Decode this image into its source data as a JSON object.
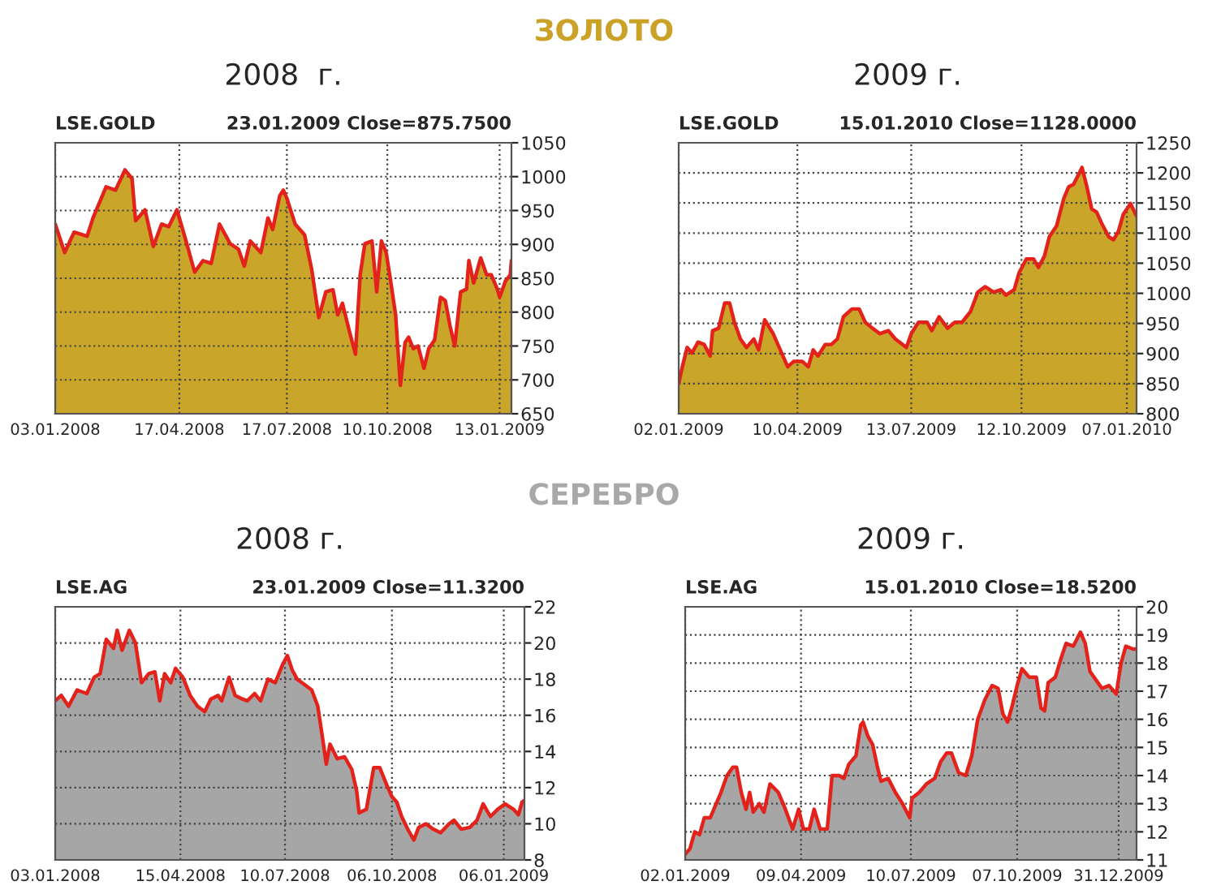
{
  "chart_data": [
    {
      "type": "area",
      "title": "2008  г.",
      "subtitle": "LSE.GOLD",
      "annotations": [
        "ЗОЛОТО",
        "23.01.2009 Close=875.7500"
      ],
      "grid": true,
      "x": [
        "2008-01-03",
        "2008-01-11",
        "2008-01-19",
        "2008-01-30",
        "2008-02-04",
        "2008-02-15",
        "2008-02-23",
        "2008-03-02",
        "2008-03-08",
        "2008-03-11",
        "2008-03-19",
        "2008-03-26",
        "2008-04-02",
        "2008-04-08",
        "2008-04-15",
        "2008-04-22",
        "2008-04-30",
        "2008-05-07",
        "2008-05-14",
        "2008-05-21",
        "2008-05-30",
        "2008-06-06",
        "2008-06-11",
        "2008-06-16",
        "2008-06-25",
        "2008-07-01",
        "2008-07-05",
        "2008-07-11",
        "2008-07-14",
        "2008-07-17",
        "2008-07-24",
        "2008-08-01",
        "2008-08-07",
        "2008-08-13",
        "2008-08-19",
        "2008-08-25",
        "2008-08-29",
        "2008-09-02",
        "2008-09-08",
        "2008-09-13",
        "2008-09-17",
        "2008-09-21",
        "2008-09-27",
        "2008-10-01",
        "2008-10-05",
        "2008-10-09",
        "2008-10-12",
        "2008-10-17",
        "2008-10-21",
        "2008-10-25",
        "2008-10-28",
        "2008-11-01",
        "2008-11-05",
        "2008-11-10",
        "2008-11-14",
        "2008-11-19",
        "2008-11-24",
        "2008-11-28",
        "2008-12-02",
        "2008-12-06",
        "2008-12-11",
        "2008-12-16",
        "2008-12-18",
        "2008-12-22",
        "2008-12-28",
        "2009-01-02",
        "2009-01-06",
        "2009-01-11",
        "2009-01-13",
        "2009-01-18",
        "2009-01-22",
        "2009-01-23"
      ],
      "series": [
        {
          "color": "#c9a52a",
          "values": [
            930,
            888,
            918,
            912,
            939,
            985,
            980,
            1010,
            997,
            935,
            951,
            897,
            930,
            926,
            951,
            909,
            859,
            876,
            872,
            930,
            901,
            893,
            868,
            905,
            888,
            939,
            922,
            972,
            980,
            968,
            930,
            914,
            863,
            792,
            830,
            833,
            796,
            813,
            771,
            738,
            855,
            901,
            905,
            830,
            905,
            888,
            855,
            796,
            692,
            755,
            763,
            746,
            750,
            717,
            746,
            759,
            822,
            817,
            780,
            750,
            830,
            834,
            876,
            843,
            880,
            855,
            855,
            834,
            822,
            846,
            855,
            876
          ]
        }
      ],
      "xlim": [
        "2008-01-03",
        "2009-01-23"
      ],
      "xticks": [
        {
          "value": "2008-01-03",
          "label": "03.01.2008"
        },
        {
          "value": "2008-04-17",
          "label": "17.04.2008"
        },
        {
          "value": "2008-07-17",
          "label": "17.07.2008"
        },
        {
          "value": "2008-10-10",
          "label": "10.10.2008"
        },
        {
          "value": "2009-01-13",
          "label": "13.01.2009"
        }
      ],
      "ylim": [
        650,
        1050
      ],
      "yticks": [
        650,
        700,
        750,
        800,
        850,
        900,
        950,
        1000,
        1050
      ]
    },
    {
      "type": "area",
      "title": "2009 г.",
      "subtitle": "LSE.GOLD",
      "annotations": [
        "15.01.2010 Close=1128.0000"
      ],
      "grid": true,
      "x": [
        "2009-01-02",
        "2009-01-05",
        "2009-01-09",
        "2009-01-13",
        "2009-01-18",
        "2009-01-23",
        "2009-01-28",
        "2009-01-30",
        "2009-02-04",
        "2009-02-09",
        "2009-02-13",
        "2009-02-17",
        "2009-02-22",
        "2009-02-27",
        "2009-03-05",
        "2009-03-09",
        "2009-03-14",
        "2009-03-21",
        "2009-03-26",
        "2009-04-02",
        "2009-04-07",
        "2009-04-14",
        "2009-04-19",
        "2009-04-23",
        "2009-04-27",
        "2009-05-03",
        "2009-05-08",
        "2009-05-13",
        "2009-05-18",
        "2009-05-25",
        "2009-05-31",
        "2009-06-05",
        "2009-06-11",
        "2009-06-17",
        "2009-06-24",
        "2009-06-30",
        "2009-07-09",
        "2009-07-13",
        "2009-07-19",
        "2009-07-26",
        "2009-07-30",
        "2009-08-05",
        "2009-08-12",
        "2009-08-18",
        "2009-08-24",
        "2009-08-31",
        "2009-09-06",
        "2009-09-12",
        "2009-09-19",
        "2009-09-25",
        "2009-09-29",
        "2009-10-06",
        "2009-10-10",
        "2009-10-16",
        "2009-10-22",
        "2009-10-26",
        "2009-10-31",
        "2009-11-04",
        "2009-11-10",
        "2009-11-16",
        "2009-11-20",
        "2009-11-24",
        "2009-12-01",
        "2009-12-05",
        "2009-12-09",
        "2009-12-13",
        "2009-12-17",
        "2009-12-23",
        "2009-12-27",
        "2009-12-31",
        "2010-01-04",
        "2010-01-10",
        "2010-01-15"
      ],
      "series": [
        {
          "color": "#c9a52a",
          "values": [
            850,
            878,
            910,
            901,
            919,
            915,
            896,
            938,
            942,
            984,
            984,
            952,
            924,
            910,
            924,
            906,
            956,
            933,
            910,
            878,
            887,
            887,
            878,
            906,
            896,
            915,
            915,
            924,
            961,
            974,
            974,
            952,
            942,
            933,
            938,
            924,
            910,
            933,
            952,
            952,
            938,
            961,
            942,
            952,
            952,
            970,
            1002,
            1011,
            1002,
            1006,
            997,
            1006,
            1034,
            1057,
            1057,
            1043,
            1062,
            1094,
            1112,
            1158,
            1177,
            1181,
            1209,
            1177,
            1140,
            1135,
            1117,
            1094,
            1089,
            1103,
            1131,
            1149,
            1128
          ]
        }
      ],
      "xlim": [
        "2009-01-02",
        "2010-01-15"
      ],
      "xticks": [
        {
          "value": "2009-01-02",
          "label": "02.01.2009"
        },
        {
          "value": "2009-04-10",
          "label": "10.04.2009"
        },
        {
          "value": "2009-07-13",
          "label": "13.07.2009"
        },
        {
          "value": "2009-10-12",
          "label": "12.10.2009"
        },
        {
          "value": "2010-01-07",
          "label": "07.01.2010"
        }
      ],
      "ylim": [
        800,
        1250
      ],
      "yticks": [
        800,
        850,
        900,
        950,
        1000,
        1050,
        1100,
        1150,
        1200,
        1250
      ]
    },
    {
      "type": "area",
      "title": "2008 г.",
      "subtitle": "LSE.AG",
      "annotations": [
        "СЕРЕБРО",
        "23.01.2009 Close=11.3200"
      ],
      "grid": true,
      "x": [
        "2008-01-03",
        "2008-01-08",
        "2008-01-14",
        "2008-01-21",
        "2008-01-29",
        "2008-02-04",
        "2008-02-09",
        "2008-02-14",
        "2008-02-20",
        "2008-02-23",
        "2008-02-27",
        "2008-03-04",
        "2008-03-09",
        "2008-03-14",
        "2008-03-20",
        "2008-03-25",
        "2008-03-29",
        "2008-04-02",
        "2008-04-07",
        "2008-04-11",
        "2008-04-17",
        "2008-04-23",
        "2008-04-29",
        "2008-05-05",
        "2008-05-10",
        "2008-05-16",
        "2008-05-19",
        "2008-05-25",
        "2008-05-30",
        "2008-06-05",
        "2008-06-09",
        "2008-06-15",
        "2008-06-20",
        "2008-06-26",
        "2008-07-02",
        "2008-07-08",
        "2008-07-12",
        "2008-07-16",
        "2008-07-20",
        "2008-07-26",
        "2008-08-01",
        "2008-08-06",
        "2008-08-10",
        "2008-08-13",
        "2008-08-16",
        "2008-08-22",
        "2008-08-28",
        "2008-09-03",
        "2008-09-07",
        "2008-09-09",
        "2008-09-15",
        "2008-09-21",
        "2008-09-26",
        "2008-10-02",
        "2008-10-06",
        "2008-10-10",
        "2008-10-14",
        "2008-10-19",
        "2008-10-24",
        "2008-10-28",
        "2008-11-03",
        "2008-11-09",
        "2008-11-15",
        "2008-11-22",
        "2008-11-26",
        "2008-12-02",
        "2008-12-09",
        "2008-12-15",
        "2008-12-20",
        "2008-12-26",
        "2009-01-01",
        "2009-01-07",
        "2009-01-14",
        "2009-01-18",
        "2009-01-21",
        "2009-01-23"
      ],
      "series": [
        {
          "color": "#a6a6a6",
          "values": [
            16.8,
            17.1,
            16.5,
            17.4,
            17.2,
            18.1,
            18.3,
            20.2,
            19.7,
            20.7,
            19.6,
            20.7,
            20.0,
            17.8,
            18.3,
            18.4,
            16.8,
            18.3,
            17.8,
            18.6,
            18.1,
            17.1,
            16.5,
            16.2,
            16.9,
            17.1,
            16.8,
            18.1,
            17.1,
            16.9,
            16.8,
            17.2,
            16.8,
            18.0,
            17.8,
            18.8,
            19.3,
            18.5,
            18.0,
            17.7,
            17.4,
            16.5,
            14.7,
            13.3,
            14.4,
            13.6,
            13.7,
            13.0,
            11.8,
            10.6,
            10.8,
            13.1,
            13.1,
            12.1,
            11.5,
            11.2,
            10.4,
            9.7,
            9.1,
            9.8,
            10.0,
            9.7,
            9.5,
            10.0,
            10.2,
            9.7,
            9.8,
            10.2,
            11.1,
            10.4,
            10.8,
            11.1,
            10.8,
            10.5,
            11.2,
            11.3
          ]
        }
      ],
      "xlim": [
        "2008-01-03",
        "2009-01-23"
      ],
      "xticks": [
        {
          "value": "2008-01-03",
          "label": "03.01.2008"
        },
        {
          "value": "2008-04-15",
          "label": "15.04.2008"
        },
        {
          "value": "2008-07-10",
          "label": "10.07.2008"
        },
        {
          "value": "2008-10-06",
          "label": "06.10.2008"
        },
        {
          "value": "2009-01-06",
          "label": "06.01.2009"
        }
      ],
      "ylim": [
        8,
        22
      ],
      "yticks": [
        8,
        10,
        12,
        14,
        16,
        18,
        20,
        22
      ]
    },
    {
      "type": "area",
      "title": "2009 г.",
      "subtitle": "LSE.AG",
      "annotations": [
        "15.01.2010 Close=18.5200"
      ],
      "grid": true,
      "x": [
        "2009-01-02",
        "2009-01-06",
        "2009-01-10",
        "2009-01-14",
        "2009-01-18",
        "2009-01-23",
        "2009-01-27",
        "2009-02-01",
        "2009-02-06",
        "2009-02-11",
        "2009-02-14",
        "2009-02-18",
        "2009-02-22",
        "2009-02-25",
        "2009-02-28",
        "2009-03-05",
        "2009-03-09",
        "2009-03-14",
        "2009-03-21",
        "2009-03-26",
        "2009-04-02",
        "2009-04-07",
        "2009-04-11",
        "2009-04-16",
        "2009-04-20",
        "2009-04-25",
        "2009-05-01",
        "2009-05-05",
        "2009-05-11",
        "2009-05-15",
        "2009-05-19",
        "2009-05-25",
        "2009-05-29",
        "2009-05-31",
        "2009-06-04",
        "2009-06-08",
        "2009-06-12",
        "2009-06-15",
        "2009-06-21",
        "2009-06-27",
        "2009-07-03",
        "2009-07-09",
        "2009-07-11",
        "2009-07-17",
        "2009-07-23",
        "2009-07-30",
        "2009-08-04",
        "2009-08-09",
        "2009-08-13",
        "2009-08-19",
        "2009-08-25",
        "2009-08-30",
        "2009-09-04",
        "2009-09-10",
        "2009-09-16",
        "2009-09-21",
        "2009-09-25",
        "2009-09-29",
        "2009-10-03",
        "2009-10-07",
        "2009-10-11",
        "2009-10-17",
        "2009-10-23",
        "2009-10-27",
        "2009-10-30",
        "2009-11-02",
        "2009-11-08",
        "2009-11-13",
        "2009-11-17",
        "2009-11-23",
        "2009-11-29",
        "2009-12-03",
        "2009-12-07",
        "2009-12-12",
        "2009-12-17",
        "2009-12-23",
        "2009-12-29",
        "2010-01-02",
        "2010-01-06",
        "2010-01-12",
        "2010-01-15"
      ],
      "series": [
        {
          "color": "#a6a6a6",
          "values": [
            11.2,
            11.4,
            12.0,
            11.9,
            12.5,
            12.5,
            12.9,
            13.4,
            14.0,
            14.3,
            14.3,
            13.4,
            12.8,
            13.4,
            12.7,
            13.0,
            12.7,
            13.7,
            13.4,
            12.9,
            12.1,
            12.8,
            12.1,
            12.1,
            12.8,
            12.1,
            12.1,
            14.0,
            14.0,
            13.9,
            14.4,
            14.7,
            15.8,
            15.9,
            15.4,
            15.1,
            14.3,
            13.8,
            13.9,
            13.4,
            13.0,
            12.5,
            13.2,
            13.4,
            13.7,
            13.9,
            14.5,
            14.8,
            14.8,
            14.1,
            14.0,
            14.7,
            16.0,
            16.7,
            17.2,
            17.1,
            16.2,
            15.9,
            16.5,
            17.2,
            17.8,
            17.5,
            17.5,
            16.4,
            16.3,
            17.3,
            17.5,
            18.2,
            18.7,
            18.6,
            19.1,
            18.7,
            17.7,
            17.4,
            17.1,
            17.2,
            16.9,
            18.0,
            18.6,
            18.5,
            18.5
          ]
        }
      ],
      "xlim": [
        "2009-01-02",
        "2010-01-15"
      ],
      "xticks": [
        {
          "value": "2009-01-02",
          "label": "02.01.2009"
        },
        {
          "value": "2009-04-09",
          "label": "09.04.2009"
        },
        {
          "value": "2009-07-10",
          "label": "10.07.2009"
        },
        {
          "value": "2009-10-07",
          "label": "07.10.2009"
        },
        {
          "value": "2009-12-31",
          "label": "31.12.2009"
        }
      ],
      "ylim": [
        11,
        20
      ],
      "yticks": [
        11,
        12,
        13,
        14,
        15,
        16,
        17,
        18,
        19,
        20
      ]
    }
  ]
}
